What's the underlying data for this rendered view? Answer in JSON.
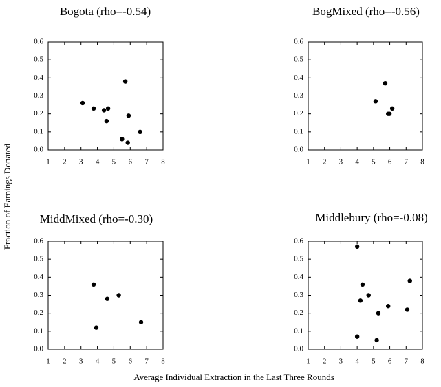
{
  "xlabel": "Average Individual Extraction in the Last Three Rounds",
  "ylabel": "Fraction of Earnings Donated",
  "chart_data": [
    {
      "type": "scatter",
      "title": "Bogota (rho=-0.54)",
      "color": "#000000",
      "x": [
        3.1,
        3.77,
        4.4,
        4.65,
        4.56,
        5.7,
        5.9,
        5.5,
        5.85,
        6.6
      ],
      "values": [
        0.26,
        0.23,
        0.22,
        0.23,
        0.16,
        0.38,
        0.19,
        0.06,
        0.04,
        0.1
      ],
      "xlim": [
        1,
        8
      ],
      "xticks": [
        1,
        2,
        3,
        4,
        5,
        6,
        7,
        8
      ],
      "ylim": [
        0,
        0.6
      ],
      "yticks": [
        {
          "value": 0,
          "label": "0.0"
        },
        0.1,
        0.2,
        0.3,
        0.4,
        0.5,
        0.6
      ]
    },
    {
      "type": "scatter",
      "title": "BogMixed (rho=-0.56)",
      "color": "#000000",
      "x": [
        5.13,
        5.72,
        5.9,
        5.98,
        6.15
      ],
      "values": [
        0.27,
        0.37,
        0.2,
        0.2,
        0.23
      ],
      "xlim": [
        1,
        8
      ],
      "xticks": [
        1,
        2,
        3,
        4,
        5,
        6,
        7,
        8
      ],
      "ylim": [
        0,
        0.6
      ],
      "yticks": [
        {
          "value": 0,
          "label": "0.0"
        },
        0.1,
        0.2,
        0.3,
        0.4,
        0.5,
        0.6
      ]
    },
    {
      "type": "scatter",
      "title": "MiddMixed (rho=-0.30)",
      "color": "#000000",
      "x": [
        3.77,
        3.93,
        4.6,
        5.3,
        6.66
      ],
      "values": [
        0.36,
        0.12,
        0.28,
        0.3,
        0.15
      ],
      "xlim": [
        1,
        8
      ],
      "xticks": [
        1,
        2,
        3,
        4,
        5,
        6,
        7,
        8
      ],
      "ylim": [
        0,
        0.6
      ],
      "yticks": [
        {
          "value": 0,
          "label": "0.0"
        },
        0.1,
        0.2,
        0.3,
        0.4,
        0.5,
        0.6
      ]
    },
    {
      "type": "scatter",
      "title": "Middlebury (rho=-0.08)",
      "color": "#000000",
      "x": [
        4.0,
        4.33,
        4.2,
        4.7,
        5.3,
        5.9,
        7.07,
        7.23,
        4.0,
        5.2
      ],
      "values": [
        0.57,
        0.36,
        0.27,
        0.3,
        0.2,
        0.24,
        0.22,
        0.38,
        0.07,
        0.05
      ],
      "xlim": [
        1,
        8
      ],
      "xticks": [
        1,
        2,
        3,
        4,
        5,
        6,
        7,
        8
      ],
      "ylim": [
        0,
        0.6
      ],
      "yticks": [
        {
          "value": 0,
          "label": "0.0"
        },
        0.1,
        0.2,
        0.3,
        0.4,
        0.5,
        0.6
      ]
    }
  ]
}
